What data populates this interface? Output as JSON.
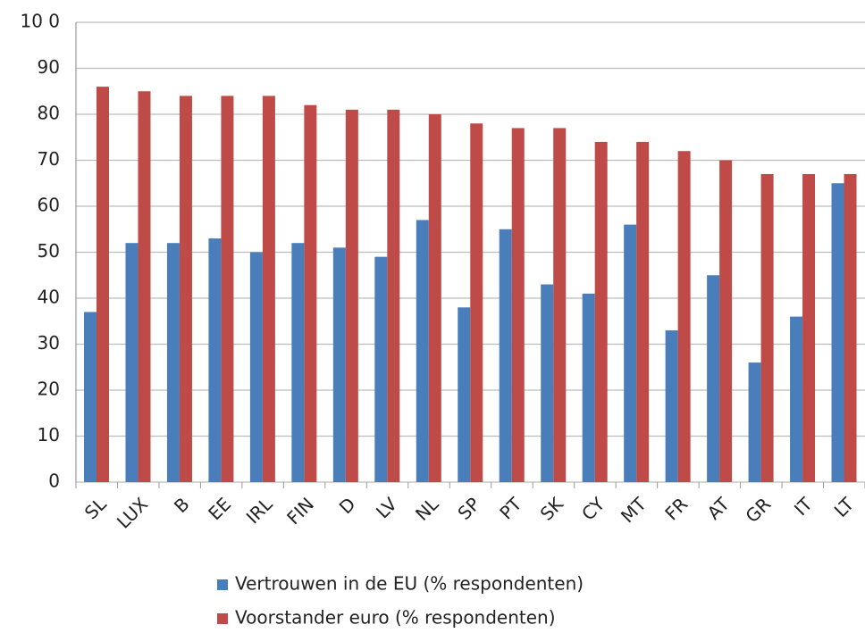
{
  "chart_data": {
    "type": "bar",
    "categories": [
      "SL",
      "LUX",
      "B",
      "EE",
      "IRL",
      "FIN",
      "D",
      "LV",
      "NL",
      "SP",
      "PT",
      "SK",
      "CY",
      "MT",
      "FR",
      "AT",
      "GR",
      "IT",
      "LT"
    ],
    "series": [
      {
        "name": "Vertrouwen in de EU (% respondenten)",
        "color": "#4a7ebb",
        "values": [
          37,
          52,
          52,
          53,
          50,
          52,
          51,
          49,
          57,
          38,
          55,
          43,
          41,
          56,
          33,
          45,
          26,
          36,
          65
        ]
      },
      {
        "name": "Voorstander euro (% respondenten)",
        "color": "#be4b48",
        "values": [
          86,
          85,
          84,
          84,
          84,
          82,
          81,
          81,
          80,
          78,
          77,
          77,
          74,
          74,
          72,
          70,
          67,
          67,
          67
        ]
      }
    ],
    "ylim": [
      0,
      100
    ],
    "yticks": [
      0,
      10,
      20,
      30,
      40,
      50,
      60,
      70,
      80,
      90,
      {
        "value": 100,
        "label": "10 0"
      }
    ],
    "grid": true,
    "legend": "bottom"
  }
}
